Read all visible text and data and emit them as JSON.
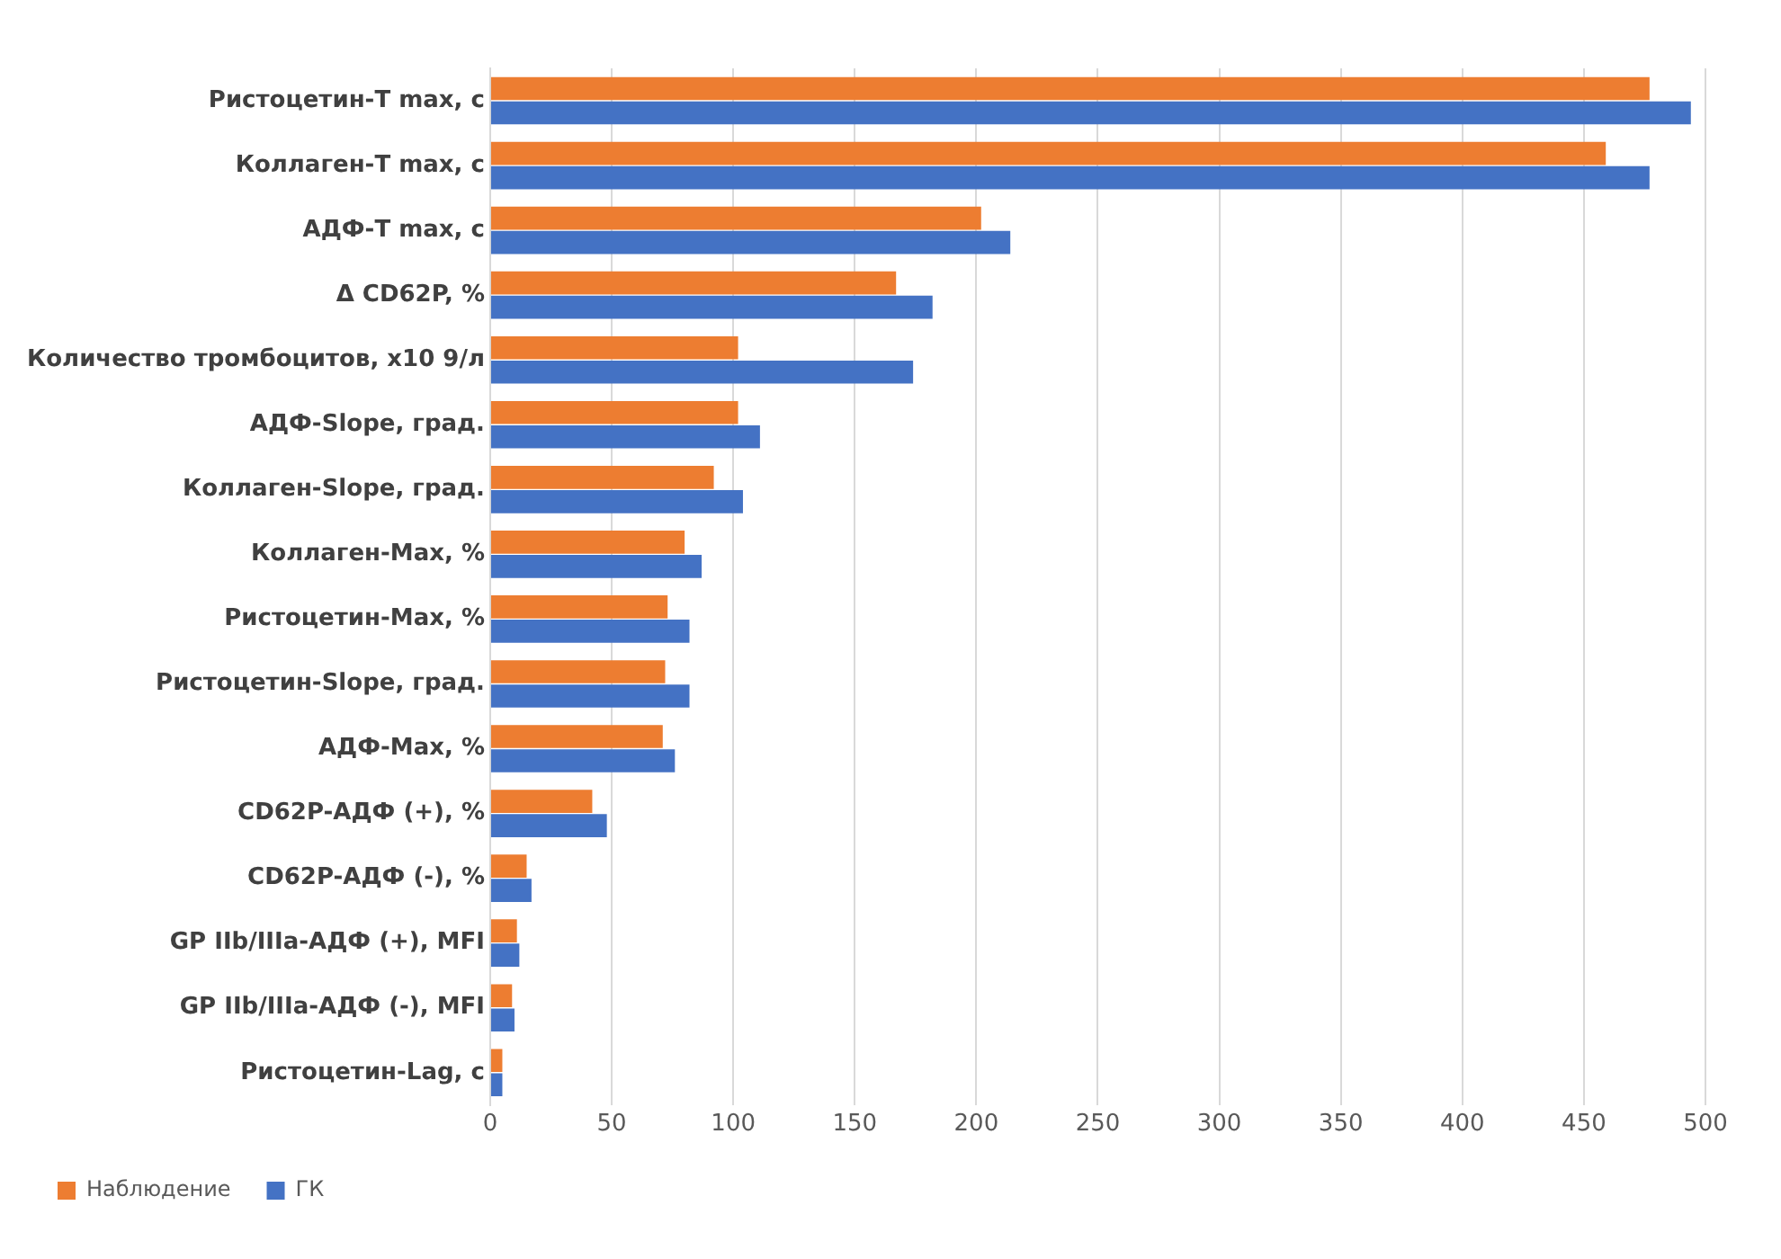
{
  "chart_data": {
    "type": "bar",
    "orientation": "horizontal",
    "categories": [
      "Ристоцетин-T max, с",
      "Коллаген-T max, с",
      "АДФ-T max, с",
      "Δ CD62P, %",
      "Количество тромбоцитов, x10 9/л",
      "АДФ-Slope, град.",
      "Коллаген-Slope, град.",
      "Коллаген-Max, %",
      "Ристоцетин-Max, %",
      "Ристоцетин-Slope, град.",
      "АДФ-Max, %",
      "CD62P-АДФ (+), %",
      "CD62P-АДФ (-), %",
      "GP IIb/IIIa-АДФ (+), MFI",
      "GP IIb/IIIa-АДФ (-), MFI",
      "Ристоцетин-Lag, с"
    ],
    "series": [
      {
        "name": "Наблюдение",
        "color": "#ed7d31",
        "values": [
          477,
          459,
          202,
          167,
          102,
          102,
          92,
          80,
          73,
          72,
          71,
          42,
          15,
          11,
          9,
          5
        ]
      },
      {
        "name": "ГК",
        "color": "#4472c4",
        "values": [
          494,
          477,
          214,
          182,
          174,
          111,
          104,
          87,
          82,
          82,
          76,
          48,
          17,
          12,
          10,
          5
        ]
      }
    ],
    "xlim": [
      0,
      500
    ],
    "xticks": [
      0,
      50,
      100,
      150,
      200,
      250,
      300,
      350,
      400,
      450,
      500
    ],
    "grid": "x",
    "legend": "bottom left"
  }
}
